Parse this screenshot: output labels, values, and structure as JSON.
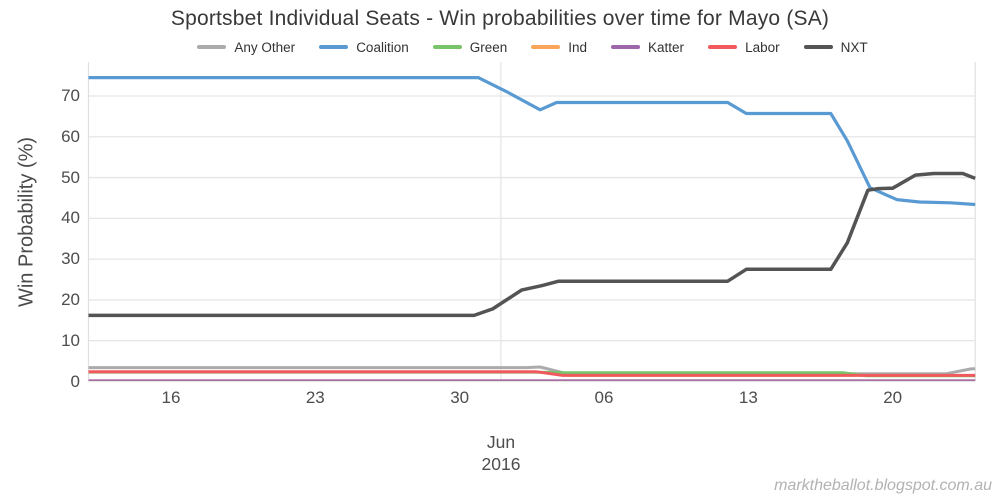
{
  "title": "Sportsbet Individual Seats - Win probabilities over time for Mayo (SA)",
  "watermark": "marktheballot.blogspot.com.au",
  "chart_data": {
    "type": "line",
    "title": "Sportsbet Individual Seats - Win probabilities over time for Mayo (SA)",
    "xlabel": "",
    "ylabel": "Win Probability (%)",
    "ylim": [
      0,
      76
    ],
    "y_ticks": [
      0,
      10,
      20,
      30,
      40,
      50,
      60,
      70
    ],
    "grid": "horizontal-light",
    "legend_position": "top-center",
    "x_axis": {
      "unit": "days since 2016-05-12",
      "start_date": "2016-05-12",
      "end_date": "2016-06-24",
      "tick_positions": [
        4,
        11,
        18,
        25,
        32,
        39
      ],
      "tick_labels": [
        "16",
        "23",
        "30",
        "06",
        "13",
        "20"
      ],
      "month_label": "Jun",
      "year_label": "2016",
      "month_gridline_day": 20
    },
    "series": [
      {
        "name": "Any Other",
        "color": "#ABABAB",
        "width": 3,
        "points": [
          [
            0,
            3.4
          ],
          [
            21.2,
            3.4
          ],
          [
            21.9,
            3.55
          ],
          [
            23.2,
            1.9
          ],
          [
            41.6,
            1.9
          ],
          [
            42.8,
            3.1
          ],
          [
            43,
            3.15
          ]
        ]
      },
      {
        "name": "Coalition",
        "color": "#599AD3",
        "width": 3.2,
        "points": [
          [
            0,
            74.5
          ],
          [
            18.9,
            74.5
          ],
          [
            20.3,
            71
          ],
          [
            21.9,
            66.6
          ],
          [
            22.7,
            68.4
          ],
          [
            31,
            68.4
          ],
          [
            31.9,
            65.7
          ],
          [
            36,
            65.7
          ],
          [
            36.8,
            59
          ],
          [
            37.9,
            47.5
          ],
          [
            39.2,
            44.6
          ],
          [
            40.3,
            44
          ],
          [
            41.8,
            43.8
          ],
          [
            43,
            43.4
          ]
        ]
      },
      {
        "name": "Green",
        "color": "#79C36A",
        "width": 3,
        "points": [
          [
            0,
            2.3
          ],
          [
            21.5,
            2.3
          ],
          [
            23,
            2.15
          ],
          [
            36.6,
            2.15
          ],
          [
            37.7,
            1.4
          ],
          [
            43,
            1.4
          ]
        ]
      },
      {
        "name": "Ind",
        "color": "#F9A65A",
        "width": 1.5,
        "points": [
          [
            0,
            0.35
          ],
          [
            43,
            0.35
          ]
        ]
      },
      {
        "name": "Katter",
        "color": "#9E66AB",
        "width": 1.5,
        "points": [
          [
            0,
            0.35
          ],
          [
            43,
            0.35
          ]
        ]
      },
      {
        "name": "Labor",
        "color": "#F1595F",
        "width": 3,
        "points": [
          [
            0,
            2.4
          ],
          [
            21.7,
            2.4
          ],
          [
            23,
            1.5
          ],
          [
            43,
            1.5
          ]
        ]
      },
      {
        "name": "NXT",
        "color": "#545454",
        "width": 3.5,
        "points": [
          [
            0,
            16.2
          ],
          [
            18.7,
            16.2
          ],
          [
            19.6,
            17.8
          ],
          [
            21,
            22.4
          ],
          [
            22,
            23.5
          ],
          [
            22.8,
            24.6
          ],
          [
            31,
            24.6
          ],
          [
            31.9,
            27.5
          ],
          [
            36,
            27.5
          ],
          [
            36.8,
            34
          ],
          [
            37.8,
            46.9
          ],
          [
            38.3,
            47.3
          ],
          [
            39,
            47.4
          ],
          [
            40.1,
            50.6
          ],
          [
            41,
            51
          ],
          [
            42.4,
            51
          ],
          [
            43,
            49.8
          ]
        ]
      }
    ],
    "style": {
      "gridline_color": "#E6E6E6",
      "panel_edge_color": "#E0E0E0",
      "axis_text_color": "#4d4d4d",
      "title_color": "#383838",
      "watermark_color": "#b2b2b2"
    }
  }
}
